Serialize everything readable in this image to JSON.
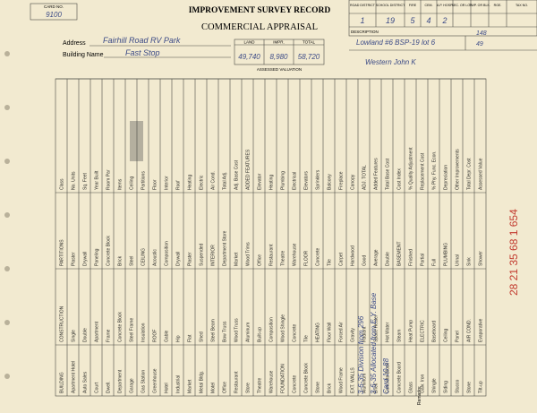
{
  "card_no_label": "CARD NO.",
  "card_no": "9100",
  "title": "IMPROVEMENT SURVEY RECORD",
  "subtitle": "COMMERCIAL APPRAISAL",
  "address": {
    "label": "Address",
    "value": "Fairhill Road RV Park"
  },
  "building_name": {
    "label": "Building Name",
    "value": "Fast Stop"
  },
  "valuation": {
    "headers": [
      "LAND",
      "IMPR.",
      "TOTAL"
    ],
    "values": [
      "49,740",
      "8,980",
      "58,720"
    ],
    "caption": "ASSESSED VALUATION"
  },
  "district_table": {
    "headers": [
      "ROAD DISTRICT",
      "SCHOOL DISTRICT",
      "FIRE",
      "CEM.",
      "A.P. HOSP.",
      "SEC. OR LOT",
      "TWP. OR BLK.",
      "RGE.",
      "TAX NO."
    ],
    "values": [
      1,
      19,
      5,
      4,
      2
    ],
    "description_label": "DESCRIPTION",
    "numbers": [
      148,
      49
    ],
    "description": [
      "Lowland #6 BSP-19 lot 6",
      "Western John K"
    ]
  },
  "grid": {
    "bands": [
      [
        "BUILDING",
        "Apartment Hotel",
        "Auto Sales",
        "Court",
        "Dwell.",
        "Department",
        "Garage",
        "Gas Station",
        "Greenhouse",
        "Hotel",
        "Industrial",
        "Market",
        "Metal Bldg.",
        "Motel",
        "Office",
        "Restaurant",
        "Store",
        "Theatre",
        "Warehouse",
        "FOUNDATION",
        "Concrete",
        "Concrete Block",
        "Stone",
        "Brick",
        "Wood Frame",
        "EXT. WALLS",
        "Aluminum",
        "Brick",
        "Concrete Block",
        "Concrete Board",
        "Glass",
        "Galv. Iron",
        "Shingle",
        "Siding",
        "Stucco",
        "Stone",
        "Tilt-up"
      ],
      [
        "CONSTRUCTION",
        "Single",
        "Double",
        "Apartment",
        "Frame",
        "Concrete Block",
        "Steel Frame",
        "Insulation",
        "ROOF",
        "Gable",
        "Hip",
        "Flat",
        "Shed",
        "Steel Beam",
        "Bow Truss",
        "Wood Truss",
        "Aluminum",
        "Built-up",
        "Composition",
        "Wood Shingle",
        "Concrete",
        "Tile",
        "HEATING",
        "Floor Wall",
        "Forced Air",
        "Gravity",
        "Radiant",
        "Space Heater",
        "Hot Water",
        "Steam",
        "Heat Pump",
        "ELECTRIC",
        "Baseboard",
        "Ceiling",
        "Panel",
        "AIR COND.",
        "Evaporative"
      ],
      [
        "PARTITIONS",
        "Plaster",
        "Drywall",
        "Paneling",
        "Concrete Block",
        "Brick",
        "Steel",
        "CEILING",
        "Acoustic",
        "Composition",
        "Drywall",
        "Plaster",
        "Suspended",
        "INTERIOR",
        "Department Store",
        "Market",
        "Wood Trims",
        "Office",
        "Restaurant",
        "Theatre",
        "Warehouse",
        "FLOOR",
        "Concrete",
        "Tile",
        "Carpet",
        "Hardwood",
        "Good",
        "Average",
        "Double",
        "BASEMENT",
        "Finished",
        "Partial",
        "Full",
        "PLUMBING",
        "Urinal",
        "Sink",
        "Shower"
      ],
      [
        "Class",
        "No. Units",
        "Sq. Feet",
        "Year Built",
        "Room Par",
        "Items",
        "Ceiling",
        "Partitions",
        "Floor",
        "Interior",
        "Roof",
        "Heating",
        "Electric",
        "Air Cond.",
        "Total Adj.",
        "Adj. Base Cost",
        "ADDED FEATURES",
        "Elevator",
        "Heating",
        "Plumbing",
        "Electrical",
        "Elevators",
        "Sprinklers",
        "Balcony",
        "Fireplace",
        "Canopy",
        "ADJ. TOTAL",
        "Added Features",
        "Total Base Cost",
        "Cost Index",
        "% Quality Adjustment",
        "Replacement Cost",
        "% Phy. Func. Econ.",
        "Depreciation",
        "Other Improvements",
        "Total Depr. Cost",
        "Assessed Value"
      ]
    ]
  },
  "remarks_label": "Remarks:",
  "notes": [
    "3-6-35 Division from 296",
    "3-6-35 Allocated from E.Y. Base",
    "Card 10-88"
  ],
  "red_numbers": "28 21 35 68 1 654"
}
